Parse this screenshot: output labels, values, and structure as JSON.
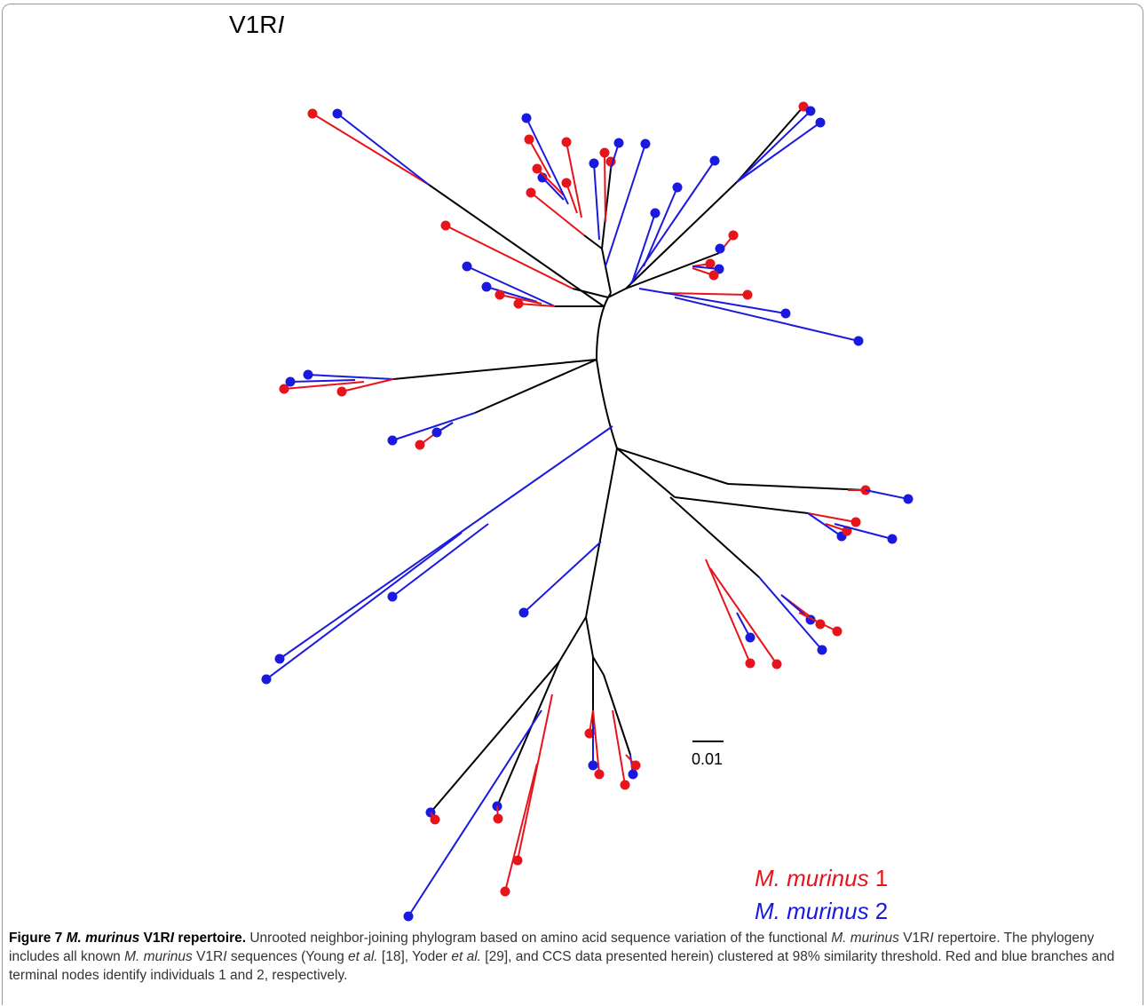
{
  "figure": {
    "panel_title": [
      "V1R",
      "I"
    ],
    "legend": [
      [
        "M. murinus",
        " 1"
      ],
      [
        "M. murinus",
        " 2"
      ]
    ],
    "scale_label": "0.01",
    "caption": [
      "Figure 7 ",
      "M. murinus",
      " V1R",
      "I",
      " repertoire.",
      " Unrooted neighbor-joining phylogram based on amino acid sequence variation of the functional ",
      "M. murinus",
      " V1R",
      "I",
      " repertoire. The phylogeny includes all known ",
      "M. murinus",
      " V1R",
      "I",
      " sequences (Young ",
      "et al.",
      " [18], Yoder ",
      "et al.",
      " [29], and CCS data presented herein) clustered at 98% similarity threshold. Red and blue branches and terminal nodes identify individuals 1 and 2, respectively."
    ]
  }
}
